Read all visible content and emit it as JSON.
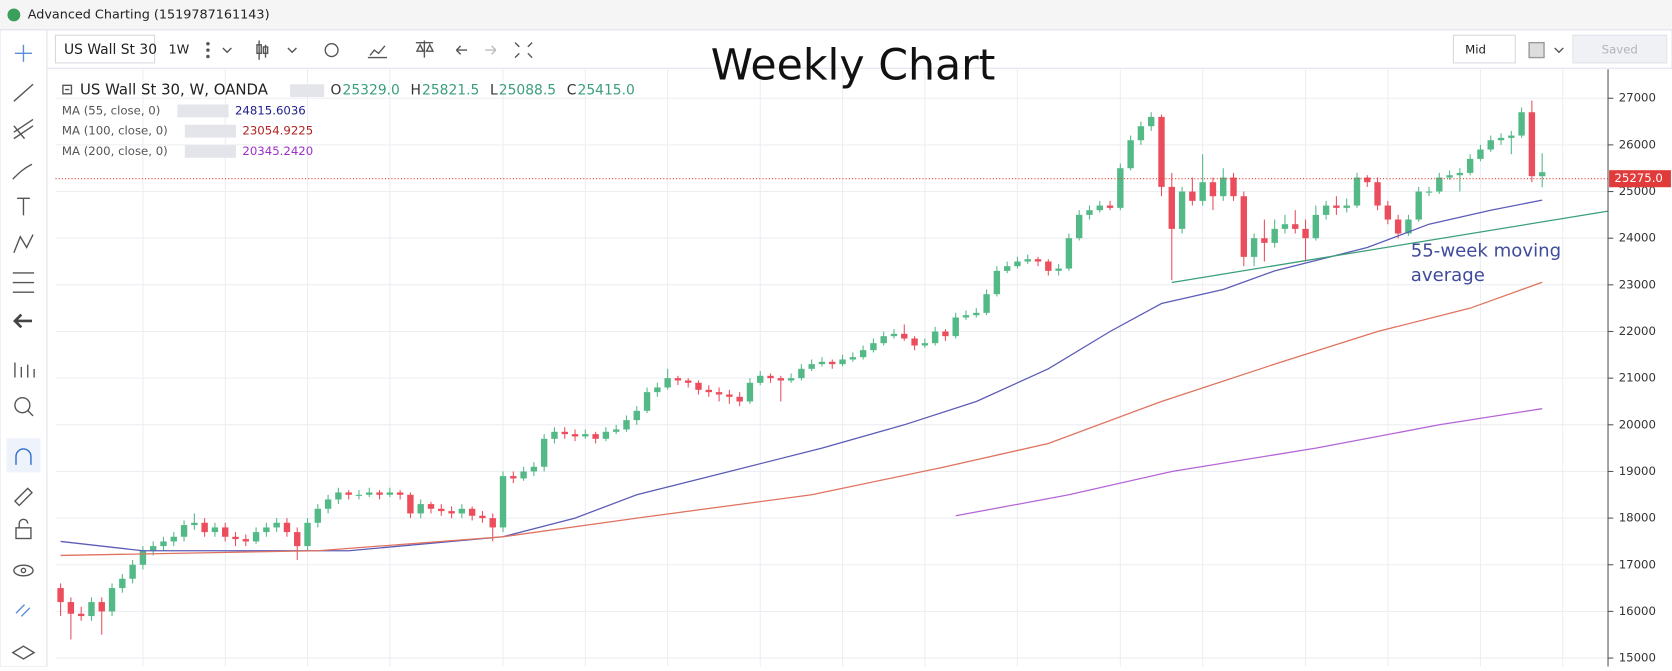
{
  "ui": {
    "window_title": "Advanced Charting (1519787161143)",
    "symbol": "US Wall St 30",
    "interval": "1W",
    "price_type": "Mid",
    "saved": "Saved"
  },
  "chart_data": {
    "type": "candlestick",
    "title": "Weekly Chart",
    "legend": {
      "symbol": "US Wall St 30, W, OANDA",
      "ohlc": [
        {
          "label": "O",
          "value": "25329.0"
        },
        {
          "label": "H",
          "value": "25821.5"
        },
        {
          "label": "L",
          "value": "25088.5"
        },
        {
          "label": "C",
          "value": "25415.0"
        }
      ]
    },
    "xlim": [
      -0.5,
      150.4
    ],
    "xticks": [
      8,
      16,
      24,
      32,
      43,
      51,
      59,
      68,
      76,
      84,
      93,
      103,
      111,
      121,
      129,
      138,
      146
    ],
    "ylim": [
      14820,
      27620
    ],
    "yticks": [
      15000,
      16000,
      17000,
      18000,
      19000,
      20000,
      21000,
      22000,
      23000,
      24000,
      25000,
      26000,
      27000
    ],
    "grid": true,
    "up_color": "#53b987",
    "down_color": "#eb4d5c",
    "last_price": 25275,
    "last_price_label": "25275.0",
    "last_price_color": "#e03a3a",
    "series": [
      {
        "name": "US Wall St 30, W, OANDA",
        "kind": "candles",
        "values": [
          [
            16500,
            16600,
            15900,
            16200
          ],
          [
            16200,
            16300,
            15400,
            15950
          ],
          [
            15950,
            16100,
            15800,
            15900
          ],
          [
            15900,
            16300,
            15800,
            16200
          ],
          [
            16200,
            16300,
            15500,
            16000
          ],
          [
            16000,
            16600,
            15900,
            16500
          ],
          [
            16500,
            16800,
            16400,
            16700
          ],
          [
            16700,
            17100,
            16600,
            17000
          ],
          [
            17000,
            17400,
            16900,
            17300
          ],
          [
            17300,
            17500,
            17200,
            17400
          ],
          [
            17400,
            17600,
            17300,
            17500
          ],
          [
            17500,
            17700,
            17400,
            17600
          ],
          [
            17600,
            17950,
            17500,
            17850
          ],
          [
            17850,
            18100,
            17750,
            17900
          ],
          [
            17900,
            18000,
            17600,
            17700
          ],
          [
            17700,
            17900,
            17600,
            17800
          ],
          [
            17800,
            17900,
            17500,
            17600
          ],
          [
            17600,
            17700,
            17400,
            17550
          ],
          [
            17550,
            17650,
            17400,
            17500
          ],
          [
            17500,
            17800,
            17450,
            17700
          ],
          [
            17700,
            17900,
            17600,
            17800
          ],
          [
            17800,
            18000,
            17700,
            17900
          ],
          [
            17900,
            18000,
            17600,
            17700
          ],
          [
            17700,
            17800,
            17100,
            17400
          ],
          [
            17400,
            18000,
            17300,
            17900
          ],
          [
            17900,
            18300,
            17800,
            18200
          ],
          [
            18200,
            18500,
            18100,
            18400
          ],
          [
            18400,
            18650,
            18300,
            18550
          ],
          [
            18550,
            18600,
            18400,
            18500
          ],
          [
            18500,
            18600,
            18400,
            18500
          ],
          [
            18500,
            18650,
            18450,
            18550
          ],
          [
            18550,
            18600,
            18400,
            18500
          ],
          [
            18500,
            18650,
            18450,
            18550
          ],
          [
            18550,
            18600,
            18400,
            18500
          ],
          [
            18500,
            18550,
            18000,
            18100
          ],
          [
            18100,
            18400,
            18000,
            18300
          ],
          [
            18300,
            18350,
            18100,
            18200
          ],
          [
            18200,
            18300,
            18050,
            18150
          ],
          [
            18150,
            18250,
            18000,
            18100
          ],
          [
            18100,
            18300,
            18000,
            18200
          ],
          [
            18200,
            18250,
            17950,
            18050
          ],
          [
            18050,
            18150,
            17900,
            18000
          ],
          [
            18000,
            18100,
            17500,
            17800
          ],
          [
            17800,
            19000,
            17700,
            18900
          ],
          [
            18900,
            19000,
            18750,
            18850
          ],
          [
            18850,
            19100,
            18800,
            19000
          ],
          [
            19000,
            19200,
            18900,
            19100
          ],
          [
            19100,
            19800,
            19000,
            19700
          ],
          [
            19700,
            19950,
            19600,
            19850
          ],
          [
            19850,
            19950,
            19700,
            19800
          ],
          [
            19800,
            19900,
            19650,
            19750
          ],
          [
            19750,
            19900,
            19700,
            19800
          ],
          [
            19800,
            19850,
            19600,
            19700
          ],
          [
            19700,
            19950,
            19650,
            19850
          ],
          [
            19850,
            20000,
            19800,
            19900
          ],
          [
            19900,
            20200,
            19850,
            20100
          ],
          [
            20100,
            20400,
            20000,
            20300
          ],
          [
            20300,
            20800,
            20250,
            20700
          ],
          [
            20700,
            20900,
            20600,
            20800
          ],
          [
            20800,
            21200,
            20750,
            21000
          ],
          [
            21000,
            21050,
            20850,
            20950
          ],
          [
            20950,
            21000,
            20800,
            20900
          ],
          [
            20900,
            20950,
            20650,
            20750
          ],
          [
            20750,
            20850,
            20600,
            20700
          ],
          [
            20700,
            20800,
            20500,
            20650
          ],
          [
            20650,
            20750,
            20450,
            20600
          ],
          [
            20600,
            20700,
            20400,
            20500
          ],
          [
            20500,
            21000,
            20450,
            20900
          ],
          [
            20900,
            21150,
            20850,
            21050
          ],
          [
            21050,
            21100,
            20900,
            21000
          ],
          [
            21000,
            21050,
            20500,
            20950
          ],
          [
            20950,
            21100,
            20900,
            21000
          ],
          [
            21000,
            21300,
            20950,
            21200
          ],
          [
            21200,
            21400,
            21150,
            21300
          ],
          [
            21300,
            21450,
            21250,
            21350
          ],
          [
            21350,
            21400,
            21200,
            21300
          ],
          [
            21300,
            21500,
            21250,
            21400
          ],
          [
            21400,
            21550,
            21350,
            21450
          ],
          [
            21450,
            21700,
            21400,
            21600
          ],
          [
            21600,
            21850,
            21550,
            21750
          ],
          [
            21750,
            22000,
            21700,
            21900
          ],
          [
            21900,
            22050,
            21850,
            21950
          ],
          [
            21950,
            22150,
            21800,
            21850
          ],
          [
            21850,
            21900,
            21600,
            21700
          ],
          [
            21700,
            21850,
            21650,
            21750
          ],
          [
            21750,
            22100,
            21700,
            22000
          ],
          [
            22000,
            22050,
            21800,
            21900
          ],
          [
            21900,
            22400,
            21850,
            22300
          ],
          [
            22300,
            22450,
            22250,
            22350
          ],
          [
            22350,
            22500,
            22300,
            22400
          ],
          [
            22400,
            22900,
            22350,
            22800
          ],
          [
            22800,
            23400,
            22750,
            23300
          ],
          [
            23300,
            23500,
            23250,
            23400
          ],
          [
            23400,
            23600,
            23350,
            23500
          ],
          [
            23500,
            23650,
            23450,
            23550
          ],
          [
            23550,
            23600,
            23400,
            23500
          ],
          [
            23500,
            23550,
            23200,
            23300
          ],
          [
            23300,
            23450,
            23200,
            23350
          ],
          [
            23350,
            24100,
            23300,
            24000
          ],
          [
            24000,
            24600,
            23950,
            24500
          ],
          [
            24500,
            24700,
            24400,
            24600
          ],
          [
            24600,
            24800,
            24550,
            24700
          ],
          [
            24700,
            24800,
            24600,
            24650
          ],
          [
            24650,
            25600,
            24600,
            25500
          ],
          [
            25500,
            26200,
            25450,
            26100
          ],
          [
            26100,
            26500,
            26000,
            26400
          ],
          [
            26400,
            26700,
            26300,
            26600
          ],
          [
            26600,
            26650,
            24900,
            25100
          ],
          [
            25100,
            25400,
            23100,
            24200
          ],
          [
            24200,
            25100,
            24100,
            25000
          ],
          [
            25000,
            25300,
            24700,
            24800
          ],
          [
            24800,
            25800,
            24700,
            25200
          ],
          [
            25200,
            25300,
            24600,
            24900
          ],
          [
            24900,
            25500,
            24800,
            25300
          ],
          [
            25300,
            25400,
            24800,
            24900
          ],
          [
            24900,
            25000,
            23400,
            23600
          ],
          [
            23600,
            24100,
            23400,
            24000
          ],
          [
            24000,
            24400,
            23500,
            23900
          ],
          [
            23900,
            24400,
            23800,
            24200
          ],
          [
            24200,
            24500,
            24100,
            24300
          ],
          [
            24300,
            24600,
            24100,
            24200
          ],
          [
            24200,
            24400,
            23500,
            24000
          ],
          [
            24000,
            24700,
            23950,
            24500
          ],
          [
            24500,
            24800,
            24400,
            24700
          ],
          [
            24700,
            24900,
            24500,
            24650
          ],
          [
            24650,
            24850,
            24550,
            24700
          ],
          [
            24700,
            25400,
            24650,
            25300
          ],
          [
            25300,
            25350,
            25100,
            25200
          ],
          [
            25200,
            25300,
            24600,
            24700
          ],
          [
            24700,
            24800,
            24300,
            24400
          ],
          [
            24400,
            24500,
            24000,
            24100
          ],
          [
            24100,
            24500,
            24050,
            24400
          ],
          [
            24400,
            25100,
            24350,
            25000
          ],
          [
            25000,
            25100,
            24900,
            25000
          ],
          [
            25000,
            25400,
            24950,
            25300
          ],
          [
            25300,
            25450,
            25250,
            25350
          ],
          [
            25350,
            25500,
            25000,
            25400
          ],
          [
            25400,
            25800,
            25350,
            25700
          ],
          [
            25700,
            26000,
            25650,
            25900
          ],
          [
            25900,
            26200,
            25850,
            26100
          ],
          [
            26100,
            26250,
            26000,
            26150
          ],
          [
            26150,
            26300,
            25800,
            26200
          ],
          [
            26200,
            26800,
            26150,
            26700
          ],
          [
            26700,
            26950,
            25200,
            25329
          ],
          [
            25329,
            25821.5,
            25088.5,
            25415
          ]
        ]
      },
      {
        "name": "MA (55, close, 0)",
        "kind": "line",
        "color": "#5c5cb8",
        "label_color": "#1f1f8c",
        "value_label": "24815.6036",
        "x": [
          0,
          8,
          28,
          43,
          50,
          56,
          65,
          74,
          82,
          89,
          96,
          102,
          107,
          113,
          118,
          127,
          133,
          139,
          144
        ],
        "values": [
          17500,
          17300,
          17300,
          17600,
          18000,
          18500,
          19000,
          19500,
          20000,
          20500,
          21200,
          22000,
          22600,
          22900,
          23300,
          23800,
          24300,
          24600,
          24815.6036
        ]
      },
      {
        "name": "MA (100, close, 0)",
        "kind": "line",
        "color": "#e0735f",
        "label_color": "#b22222",
        "value_label": "23054.9225",
        "x": [
          0,
          25,
          43,
          56,
          73,
          86,
          96,
          107,
          118,
          128,
          137,
          144
        ],
        "values": [
          17200,
          17300,
          17600,
          18000,
          18500,
          19100,
          19600,
          20500,
          21300,
          22000,
          22500,
          23054.9225
        ]
      },
      {
        "name": "MA (200, close, 0)",
        "kind": "line",
        "color": "#b565d6",
        "label_color": "#9b30c8",
        "value_label": "20345.2420",
        "x": [
          87,
          98,
          108,
          122,
          134,
          144
        ],
        "values": [
          18050,
          18500,
          19000,
          19500,
          20000,
          20345.242
        ]
      }
    ],
    "trendline": {
      "color": "#3a9f7a",
      "x": [
        108,
        150.4
      ],
      "values": [
        23050,
        24580
      ]
    },
    "annotation": {
      "color": "#3f4b9a",
      "lines": [
        "55-week moving",
        "average"
      ]
    }
  }
}
